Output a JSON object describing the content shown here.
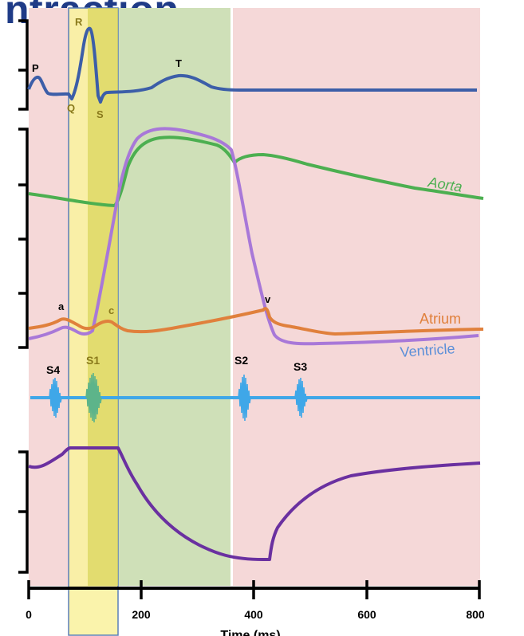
{
  "title": "ntraction",
  "ecg_labels": {
    "p": "P",
    "q": "Q",
    "r": "R",
    "s": "S",
    "t": "T"
  },
  "pressure_labels": {
    "aorta": "Aorta",
    "atrium": "Atrium",
    "ventricle": "Ventricle",
    "a_wave": "a",
    "c_wave": "c",
    "v_wave": "v"
  },
  "heart_sounds": {
    "s1": "S1",
    "s2": "S2",
    "s3": "S3",
    "s4": "S4"
  },
  "x_axis": {
    "ticks": [
      "0",
      "200",
      "400",
      "600",
      "800"
    ],
    "label": "Time (ms)"
  },
  "colors": {
    "background_pink": "#f5d8d8",
    "ejection_green": "#cfe0b8",
    "highlight_yellow": "#f9f2a2",
    "ecg": "#3c5ea8",
    "aorta": "#4caf50",
    "atrium": "#e0803c",
    "ventricle": "#a878d8",
    "heart_sound": "#3fa7e8",
    "volume": "#6a30a0",
    "title": "#1f3b87"
  }
}
